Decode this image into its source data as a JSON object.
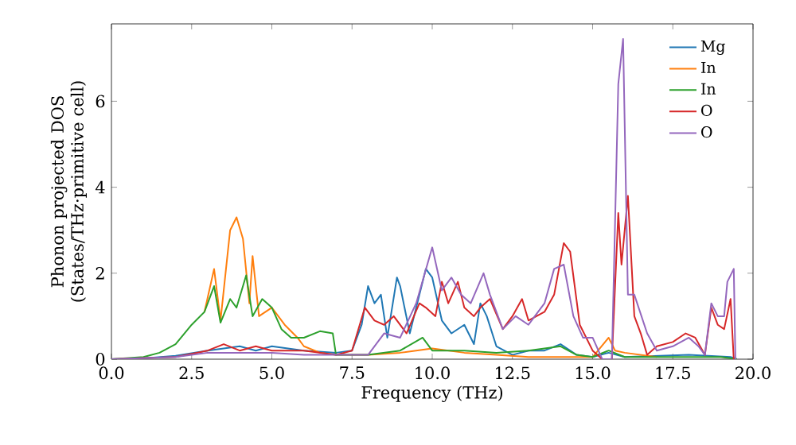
{
  "chart_data": {
    "type": "line",
    "xlabel": "Frequency (THz)",
    "ylabel": "Phonon projected DOS (States/THz·primitive cell)",
    "xlim": [
      0,
      20
    ],
    "ylim": [
      0,
      7.8
    ],
    "xticks": [
      {
        "value": 0,
        "label": "0.0"
      },
      {
        "value": 2.5,
        "label": "2.5"
      },
      {
        "value": 5,
        "label": "5.0"
      },
      {
        "value": 7.5,
        "label": "7.5"
      },
      {
        "value": 10,
        "label": "10.0"
      },
      {
        "value": 12.5,
        "label": "12.5"
      },
      {
        "value": 15,
        "label": "15.0"
      },
      {
        "value": 17.5,
        "label": "17.5"
      },
      {
        "value": 20,
        "label": "20.0"
      }
    ],
    "yticks": [
      0,
      2,
      4,
      6
    ],
    "legend": "top right",
    "series": [
      {
        "name": "Mg",
        "color": "#1f77b4",
        "x": [
          0,
          1,
          2,
          3,
          3.5,
          4,
          4.5,
          5,
          6,
          7,
          7.5,
          7.8,
          8.0,
          8.2,
          8.4,
          8.6,
          8.9,
          9.0,
          9.3,
          9.8,
          10.0,
          10.3,
          10.6,
          11.0,
          11.3,
          11.5,
          11.7,
          12.0,
          12.5,
          13.0,
          13.5,
          14.0,
          14.5,
          15.0,
          15.5,
          16.0,
          18,
          19.3,
          19.5
        ],
        "values": [
          0,
          0.02,
          0.08,
          0.2,
          0.25,
          0.3,
          0.2,
          0.3,
          0.2,
          0.15,
          0.2,
          0.8,
          1.7,
          1.3,
          1.5,
          0.5,
          1.9,
          1.7,
          0.6,
          2.1,
          1.9,
          0.9,
          0.6,
          0.8,
          0.35,
          1.3,
          1.0,
          0.3,
          0.1,
          0.2,
          0.2,
          0.35,
          0.1,
          0.05,
          0.15,
          0.05,
          0.1,
          0.05,
          0
        ]
      },
      {
        "name": "In",
        "color": "#ff7f0e",
        "x": [
          2.9,
          3.2,
          3.4,
          3.7,
          3.9,
          4.1,
          4.3,
          4.4,
          4.6,
          5.0,
          5.4,
          5.8,
          6.0,
          6.5,
          7,
          8,
          9,
          10,
          11,
          12,
          13,
          14,
          15,
          15.5,
          15.7,
          16,
          17
        ],
        "values": [
          1.1,
          2.1,
          0.9,
          3.0,
          3.3,
          2.8,
          1.3,
          2.4,
          1.0,
          1.2,
          0.8,
          0.5,
          0.3,
          0.15,
          0.1,
          0.1,
          0.15,
          0.25,
          0.15,
          0.1,
          0.05,
          0.05,
          0.05,
          0.5,
          0.2,
          0.15,
          0.05
        ]
      },
      {
        "name": "In",
        "color": "#2ca02c",
        "x": [
          0,
          1,
          1.5,
          2,
          2.5,
          2.9,
          3.2,
          3.4,
          3.7,
          3.9,
          4.2,
          4.4,
          4.7,
          5.0,
          5.3,
          5.6,
          6.0,
          6.5,
          6.9,
          7.0,
          8,
          9,
          9.7,
          10,
          11,
          12,
          13,
          14,
          14.5,
          15,
          15.5,
          16,
          17,
          18,
          19,
          19.5
        ],
        "values": [
          0,
          0.05,
          0.15,
          0.35,
          0.8,
          1.1,
          1.7,
          0.85,
          1.4,
          1.2,
          1.95,
          1.0,
          1.4,
          1.2,
          0.7,
          0.5,
          0.5,
          0.65,
          0.6,
          0.1,
          0.1,
          0.2,
          0.5,
          0.2,
          0.2,
          0.15,
          0.2,
          0.3,
          0.1,
          0.05,
          0.2,
          0.05,
          0.05,
          0.05,
          0.05,
          0
        ]
      },
      {
        "name": "O",
        "color": "#d62728",
        "x": [
          0,
          2,
          3,
          3.5,
          4,
          4.5,
          5,
          6,
          7,
          7.5,
          7.9,
          8.2,
          8.5,
          8.8,
          9.2,
          9.6,
          9.8,
          10.1,
          10.3,
          10.5,
          10.8,
          11.0,
          11.3,
          11.5,
          11.8,
          12.2,
          12.5,
          12.8,
          13.0,
          13.5,
          13.8,
          14.1,
          14.3,
          14.6,
          15.0,
          15.3,
          15.6,
          15.8,
          15.9,
          16.1,
          16.3,
          16.5,
          16.7,
          17,
          17.5,
          17.9,
          18.2,
          18.5,
          18.7,
          18.9,
          19.1,
          19.3,
          19.4
        ],
        "values": [
          0,
          0.05,
          0.2,
          0.35,
          0.2,
          0.3,
          0.2,
          0.2,
          0.1,
          0.2,
          1.2,
          0.9,
          0.8,
          1.0,
          0.6,
          1.3,
          1.2,
          1.0,
          1.8,
          1.3,
          1.8,
          1.2,
          1.0,
          1.2,
          1.4,
          0.7,
          1.0,
          1.4,
          0.9,
          1.1,
          1.5,
          2.7,
          2.5,
          0.8,
          0.2,
          0,
          0,
          3.4,
          2.2,
          3.8,
          1.0,
          0.6,
          0.1,
          0.3,
          0.4,
          0.6,
          0.5,
          0.1,
          1.2,
          0.8,
          0.7,
          1.4,
          0
        ]
      },
      {
        "name": "O",
        "color": "#9467bd",
        "x": [
          0,
          2,
          3,
          4,
          5,
          6,
          7,
          8,
          8.5,
          9.0,
          9.5,
          10.0,
          10.3,
          10.6,
          10.9,
          11.2,
          11.6,
          11.8,
          12.2,
          12.6,
          13.0,
          13.5,
          13.8,
          14.1,
          14.4,
          14.7,
          15.0,
          15.3,
          15.6,
          15.8,
          15.95,
          16.1,
          16.3,
          16.7,
          17,
          17.5,
          18,
          18.3,
          18.5,
          18.7,
          18.9,
          19.1,
          19.2,
          19.4,
          19.45
        ],
        "values": [
          0,
          0.05,
          0.15,
          0.15,
          0.15,
          0.1,
          0.1,
          0.1,
          0.6,
          0.5,
          1.3,
          2.6,
          1.6,
          1.9,
          1.5,
          1.3,
          2.0,
          1.5,
          0.7,
          1.0,
          0.8,
          1.3,
          2.1,
          2.2,
          1.0,
          0.5,
          0.5,
          0,
          0,
          6.4,
          7.45,
          1.5,
          1.5,
          0.6,
          0.2,
          0.3,
          0.5,
          0.3,
          0.1,
          1.3,
          1.0,
          1.0,
          1.8,
          2.1,
          0
        ]
      }
    ]
  }
}
